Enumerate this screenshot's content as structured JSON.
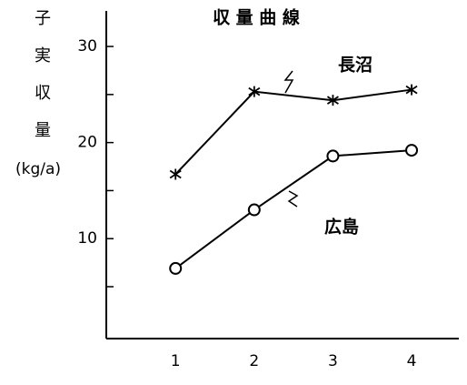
{
  "chart_data": {
    "type": "line",
    "title": "収 量 曲 線",
    "y_label": "子実収量",
    "y_unit": "(kg/a)",
    "x": [
      1,
      2,
      3,
      4
    ],
    "xlim": [
      0.12,
      4.6
    ],
    "xticks": [
      1,
      2,
      3,
      4
    ],
    "ylim": [
      -0.4,
      33.7
    ],
    "yticks": [
      10,
      20,
      30
    ],
    "minor_yticks": [
      5,
      15,
      25
    ],
    "series": [
      {
        "name": "長沼",
        "color": "#000000",
        "marker": "asterisk",
        "values": [
          16.7,
          25.3,
          24.4,
          25.5
        ]
      },
      {
        "name": "広島",
        "color": "#000000",
        "marker": "circle",
        "values": [
          6.9,
          13.0,
          18.6,
          19.2
        ]
      }
    ]
  }
}
